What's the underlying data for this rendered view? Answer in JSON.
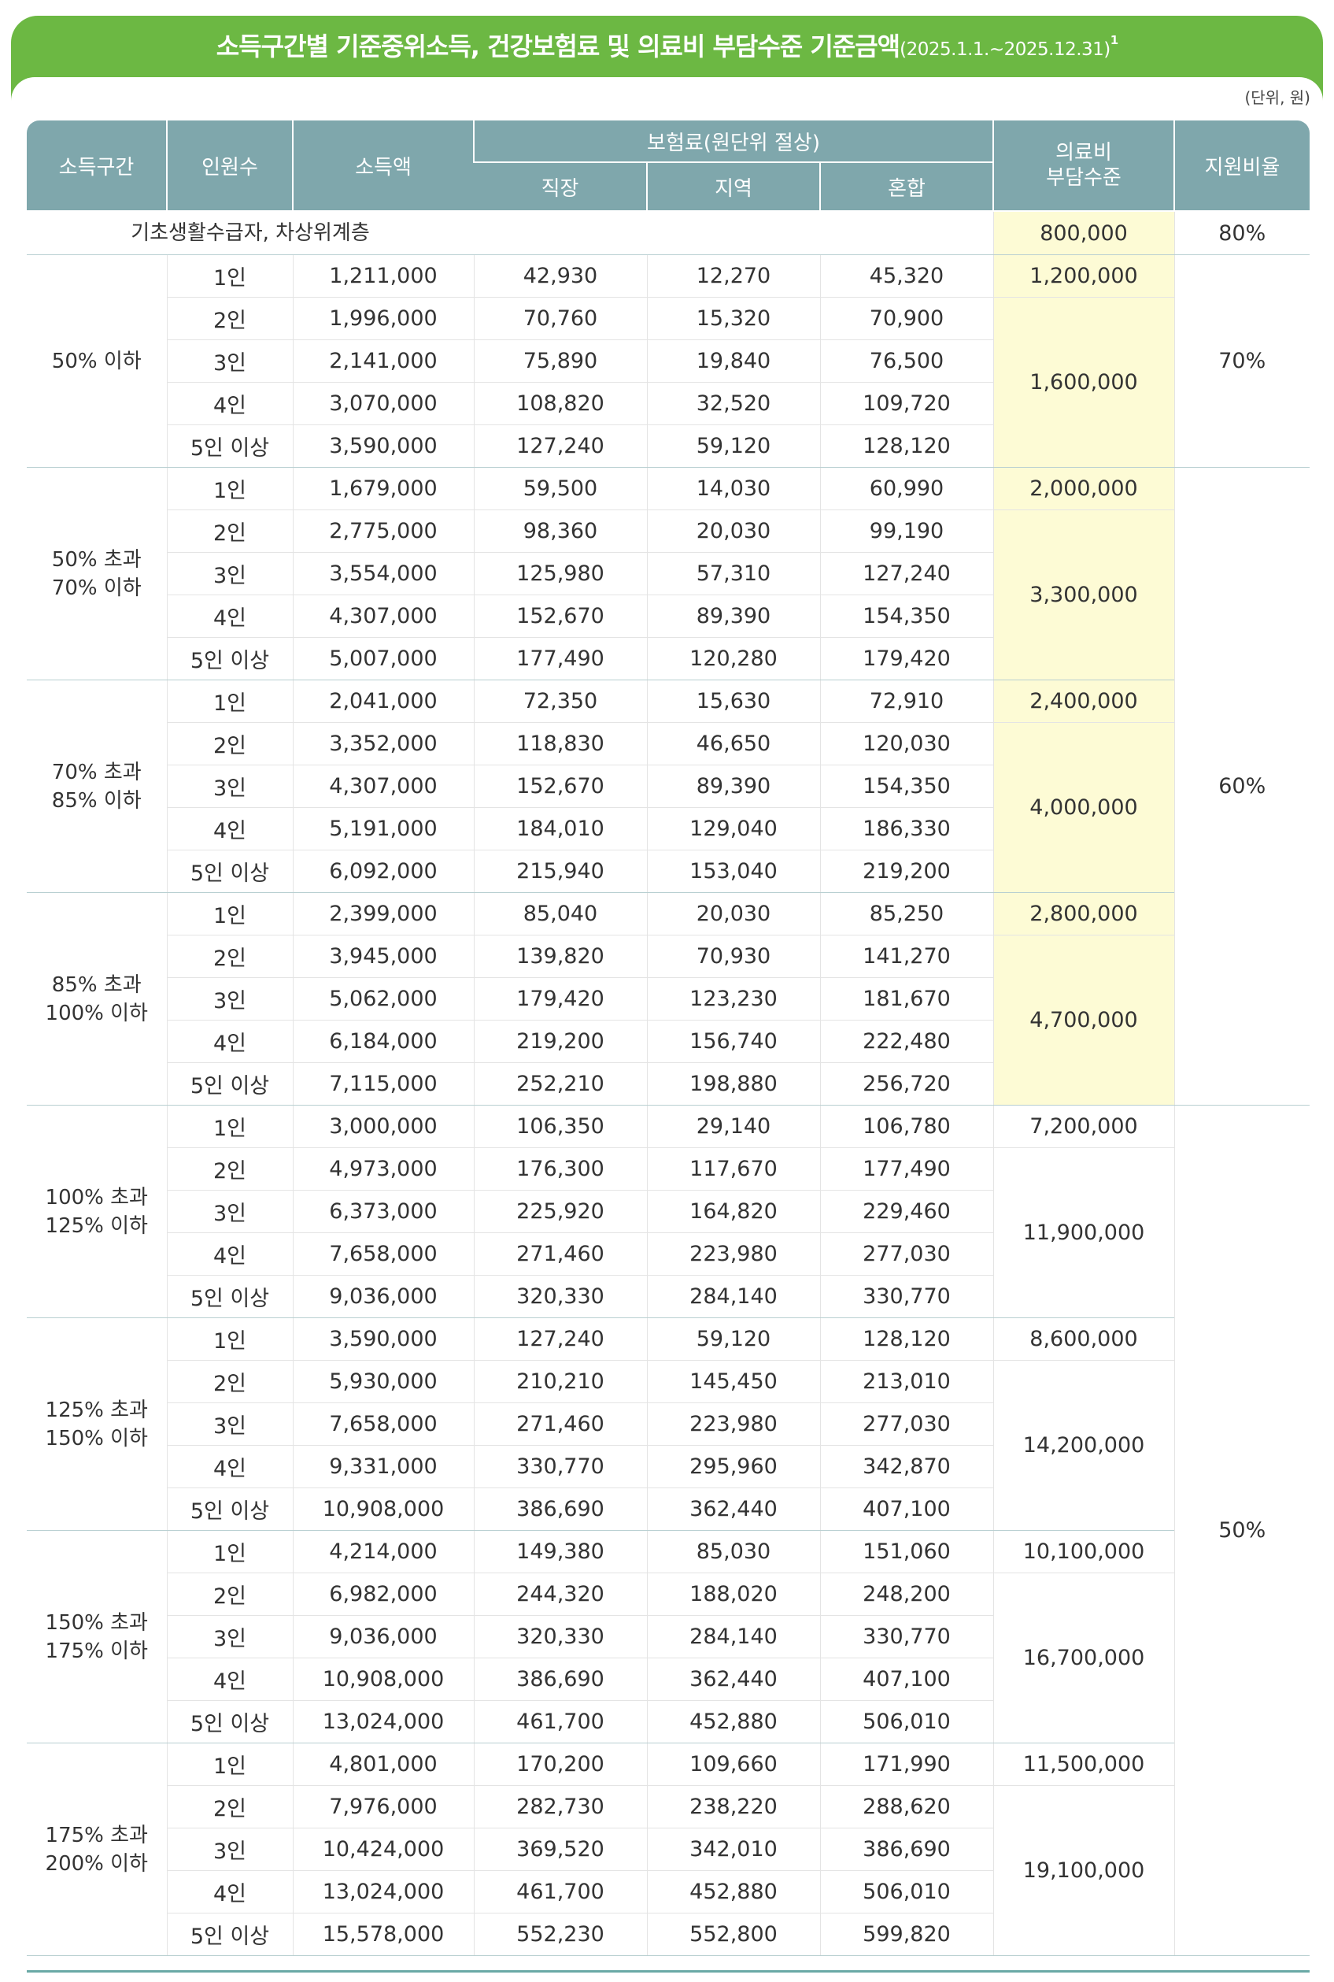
{
  "title": {
    "main": "소득구간별 기준중위소득, 건강보험료 및 의료비 부담수준 기준금액",
    "period": "(2025.1.1.~2025.12.31)",
    "footnote": "1"
  },
  "unit_note": "(단위, 원)",
  "header": {
    "income_group": "소득구간",
    "persons": "인원수",
    "income": "소득액",
    "premium_group": "보험료(원단위 절상)",
    "workplace": "직장",
    "regional": "지역",
    "mixed": "혼합",
    "burden_line1": "의료비",
    "burden_line2": "부담수준",
    "support_ratio": "지원비율"
  },
  "basic_row": {
    "label": "기초생활수급자, 차상위계층",
    "burden": "800,000",
    "ratio": "80%"
  },
  "groups": [
    {
      "label_line1": "50% 이하",
      "label_line2": "",
      "burden_single": "1,200,000",
      "burden_multi": "1,600,000",
      "rows": [
        {
          "persons": "1인",
          "income": "1,211,000",
          "workplace": "42,930",
          "regional": "12,270",
          "mixed": "45,320"
        },
        {
          "persons": "2인",
          "income": "1,996,000",
          "workplace": "70,760",
          "regional": "15,320",
          "mixed": "70,900"
        },
        {
          "persons": "3인",
          "income": "2,141,000",
          "workplace": "75,890",
          "regional": "19,840",
          "mixed": "76,500"
        },
        {
          "persons": "4인",
          "income": "3,070,000",
          "workplace": "108,820",
          "regional": "32,520",
          "mixed": "109,720"
        },
        {
          "persons": "5인 이상",
          "income": "3,590,000",
          "workplace": "127,240",
          "regional": "59,120",
          "mixed": "128,120"
        }
      ]
    },
    {
      "label_line1": "50% 초과",
      "label_line2": "70% 이하",
      "burden_single": "2,000,000",
      "burden_multi": "3,300,000",
      "rows": [
        {
          "persons": "1인",
          "income": "1,679,000",
          "workplace": "59,500",
          "regional": "14,030",
          "mixed": "60,990"
        },
        {
          "persons": "2인",
          "income": "2,775,000",
          "workplace": "98,360",
          "regional": "20,030",
          "mixed": "99,190"
        },
        {
          "persons": "3인",
          "income": "3,554,000",
          "workplace": "125,980",
          "regional": "57,310",
          "mixed": "127,240"
        },
        {
          "persons": "4인",
          "income": "4,307,000",
          "workplace": "152,670",
          "regional": "89,390",
          "mixed": "154,350"
        },
        {
          "persons": "5인 이상",
          "income": "5,007,000",
          "workplace": "177,490",
          "regional": "120,280",
          "mixed": "179,420"
        }
      ]
    },
    {
      "label_line1": "70% 초과",
      "label_line2": "85% 이하",
      "burden_single": "2,400,000",
      "burden_multi": "4,000,000",
      "rows": [
        {
          "persons": "1인",
          "income": "2,041,000",
          "workplace": "72,350",
          "regional": "15,630",
          "mixed": "72,910"
        },
        {
          "persons": "2인",
          "income": "3,352,000",
          "workplace": "118,830",
          "regional": "46,650",
          "mixed": "120,030"
        },
        {
          "persons": "3인",
          "income": "4,307,000",
          "workplace": "152,670",
          "regional": "89,390",
          "mixed": "154,350"
        },
        {
          "persons": "4인",
          "income": "5,191,000",
          "workplace": "184,010",
          "regional": "129,040",
          "mixed": "186,330"
        },
        {
          "persons": "5인 이상",
          "income": "6,092,000",
          "workplace": "215,940",
          "regional": "153,040",
          "mixed": "219,200"
        }
      ]
    },
    {
      "label_line1": "85% 초과",
      "label_line2": "100% 이하",
      "burden_single": "2,800,000",
      "burden_multi": "4,700,000",
      "rows": [
        {
          "persons": "1인",
          "income": "2,399,000",
          "workplace": "85,040",
          "regional": "20,030",
          "mixed": "85,250"
        },
        {
          "persons": "2인",
          "income": "3,945,000",
          "workplace": "139,820",
          "regional": "70,930",
          "mixed": "141,270"
        },
        {
          "persons": "3인",
          "income": "5,062,000",
          "workplace": "179,420",
          "regional": "123,230",
          "mixed": "181,670"
        },
        {
          "persons": "4인",
          "income": "6,184,000",
          "workplace": "219,200",
          "regional": "156,740",
          "mixed": "222,480"
        },
        {
          "persons": "5인 이상",
          "income": "7,115,000",
          "workplace": "252,210",
          "regional": "198,880",
          "mixed": "256,720"
        }
      ]
    },
    {
      "label_line1": "100% 초과",
      "label_line2": "125% 이하",
      "burden_single": "7,200,000",
      "burden_multi": "11,900,000",
      "rows": [
        {
          "persons": "1인",
          "income": "3,000,000",
          "workplace": "106,350",
          "regional": "29,140",
          "mixed": "106,780"
        },
        {
          "persons": "2인",
          "income": "4,973,000",
          "workplace": "176,300",
          "regional": "117,670",
          "mixed": "177,490"
        },
        {
          "persons": "3인",
          "income": "6,373,000",
          "workplace": "225,920",
          "regional": "164,820",
          "mixed": "229,460"
        },
        {
          "persons": "4인",
          "income": "7,658,000",
          "workplace": "271,460",
          "regional": "223,980",
          "mixed": "277,030"
        },
        {
          "persons": "5인 이상",
          "income": "9,036,000",
          "workplace": "320,330",
          "regional": "284,140",
          "mixed": "330,770"
        }
      ]
    },
    {
      "label_line1": "125% 초과",
      "label_line2": "150% 이하",
      "burden_single": "8,600,000",
      "burden_multi": "14,200,000",
      "rows": [
        {
          "persons": "1인",
          "income": "3,590,000",
          "workplace": "127,240",
          "regional": "59,120",
          "mixed": "128,120"
        },
        {
          "persons": "2인",
          "income": "5,930,000",
          "workplace": "210,210",
          "regional": "145,450",
          "mixed": "213,010"
        },
        {
          "persons": "3인",
          "income": "7,658,000",
          "workplace": "271,460",
          "regional": "223,980",
          "mixed": "277,030"
        },
        {
          "persons": "4인",
          "income": "9,331,000",
          "workplace": "330,770",
          "regional": "295,960",
          "mixed": "342,870"
        },
        {
          "persons": "5인 이상",
          "income": "10,908,000",
          "workplace": "386,690",
          "regional": "362,440",
          "mixed": "407,100"
        }
      ]
    },
    {
      "label_line1": "150% 초과",
      "label_line2": "175% 이하",
      "burden_single": "10,100,000",
      "burden_multi": "16,700,000",
      "rows": [
        {
          "persons": "1인",
          "income": "4,214,000",
          "workplace": "149,380",
          "regional": "85,030",
          "mixed": "151,060"
        },
        {
          "persons": "2인",
          "income": "6,982,000",
          "workplace": "244,320",
          "regional": "188,020",
          "mixed": "248,200"
        },
        {
          "persons": "3인",
          "income": "9,036,000",
          "workplace": "320,330",
          "regional": "284,140",
          "mixed": "330,770"
        },
        {
          "persons": "4인",
          "income": "10,908,000",
          "workplace": "386,690",
          "regional": "362,440",
          "mixed": "407,100"
        },
        {
          "persons": "5인 이상",
          "income": "13,024,000",
          "workplace": "461,700",
          "regional": "452,880",
          "mixed": "506,010"
        }
      ]
    },
    {
      "label_line1": "175% 초과",
      "label_line2": "200% 이하",
      "burden_single": "11,500,000",
      "burden_multi": "19,100,000",
      "rows": [
        {
          "persons": "1인",
          "income": "4,801,000",
          "workplace": "170,200",
          "regional": "109,660",
          "mixed": "171,990"
        },
        {
          "persons": "2인",
          "income": "7,976,000",
          "workplace": "282,730",
          "regional": "238,220",
          "mixed": "288,620"
        },
        {
          "persons": "3인",
          "income": "10,424,000",
          "workplace": "369,520",
          "regional": "342,010",
          "mixed": "386,690"
        },
        {
          "persons": "4인",
          "income": "13,024,000",
          "workplace": "461,700",
          "regional": "452,880",
          "mixed": "506,010"
        },
        {
          "persons": "5인 이상",
          "income": "15,578,000",
          "workplace": "552,230",
          "regional": "552,800",
          "mixed": "599,820"
        }
      ]
    }
  ],
  "ratios": [
    "70%",
    "60%",
    "50%"
  ]
}
